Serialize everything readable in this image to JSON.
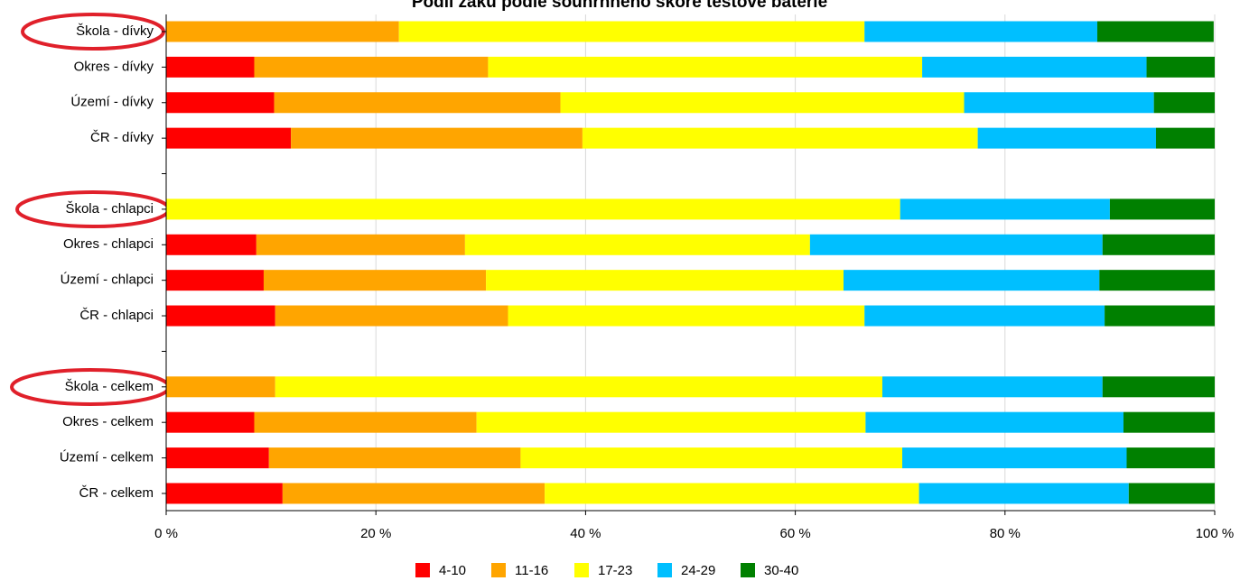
{
  "chart_data": {
    "type": "stacked-bar-horizontal",
    "title": "Podíl žáků podle souhrnného skóre testové baterie",
    "categories": [
      "Škola - dívky",
      "Okres - dívky",
      "Území - dívky",
      "ČR - dívky",
      null,
      "Škola - chlapci",
      "Okres - chlapci",
      "Území - chlapci",
      "ČR - chlapci",
      null,
      "Škola - celkem",
      "Okres - celkem",
      "Území - celkem",
      "ČR - celkem"
    ],
    "series": [
      {
        "name": "4-10",
        "color": "#ff0000",
        "values": [
          0,
          8.4,
          10.3,
          11.9,
          null,
          0,
          8.6,
          9.3,
          10.4,
          null,
          0,
          8.4,
          9.8,
          11.1
        ]
      },
      {
        "name": "11-16",
        "color": "#ffa500",
        "values": [
          22.2,
          22.3,
          27.3,
          27.8,
          null,
          0,
          19.9,
          21.2,
          22.2,
          null,
          10.4,
          21.2,
          24.0,
          25.0
        ]
      },
      {
        "name": "17-23",
        "color": "#ffff00",
        "values": [
          44.4,
          41.4,
          38.5,
          37.7,
          null,
          70.0,
          32.9,
          34.1,
          34.0,
          null,
          57.9,
          37.1,
          36.4,
          35.7
        ]
      },
      {
        "name": "24-29",
        "color": "#00bfff",
        "values": [
          22.2,
          21.4,
          18.1,
          17.0,
          null,
          20.0,
          27.9,
          24.4,
          22.9,
          null,
          21.0,
          24.6,
          21.4,
          20.0
        ]
      },
      {
        "name": "30-40",
        "color": "#008000",
        "values": [
          11.1,
          6.5,
          5.8,
          5.6,
          null,
          10.0,
          10.7,
          11.0,
          10.5,
          null,
          10.7,
          8.7,
          8.4,
          8.2
        ]
      }
    ],
    "xlim": [
      0,
      100
    ],
    "xticks": [
      {
        "value": 0,
        "label": "0 %"
      },
      {
        "value": 20,
        "label": "20 %"
      },
      {
        "value": 40,
        "label": "40 %"
      },
      {
        "value": 60,
        "label": "60 %"
      },
      {
        "value": 80,
        "label": "80 %"
      },
      {
        "value": 100,
        "label": "100 %"
      }
    ],
    "grid": true,
    "legend": "bottom"
  }
}
